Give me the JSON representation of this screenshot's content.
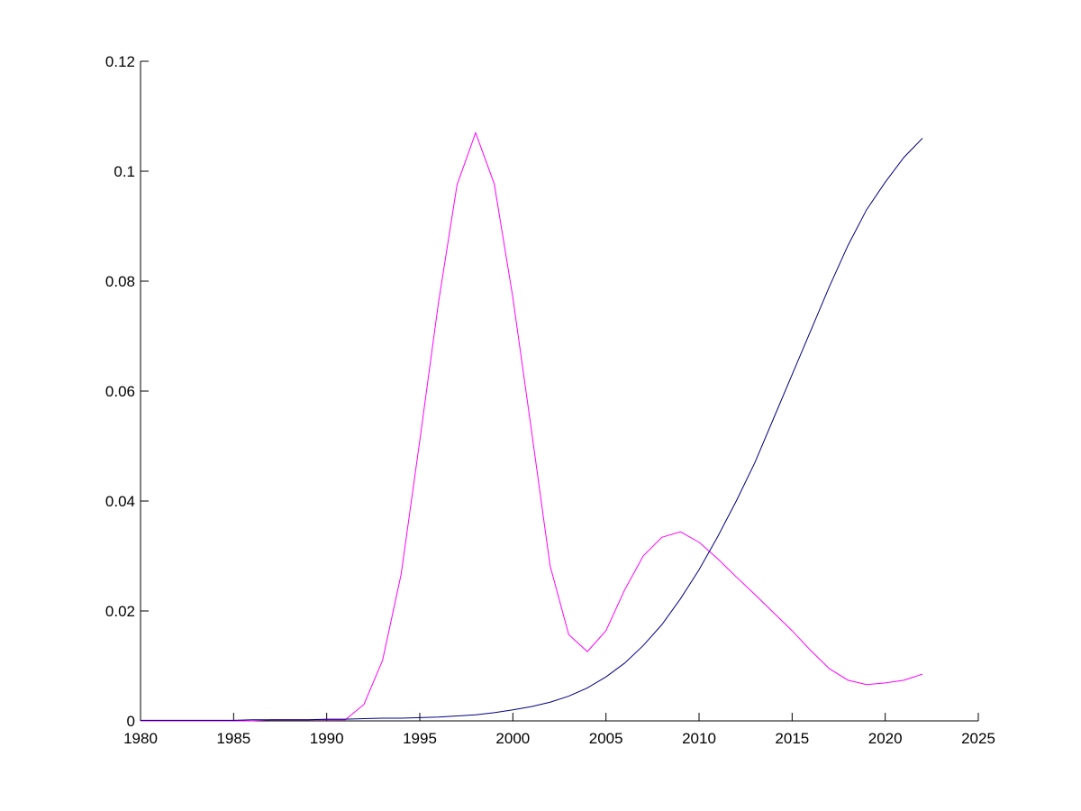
{
  "chart_data": {
    "type": "line",
    "x": [
      1980,
      1981,
      1982,
      1983,
      1984,
      1985,
      1986,
      1987,
      1988,
      1989,
      1990,
      1991,
      1992,
      1993,
      1994,
      1995,
      1996,
      1997,
      1998,
      1999,
      2000,
      2001,
      2002,
      2003,
      2004,
      2005,
      2006,
      2007,
      2008,
      2009,
      2010,
      2011,
      2012,
      2013,
      2014,
      2015,
      2016,
      2017,
      2018,
      2019,
      2020,
      2021,
      2022
    ],
    "series": [
      {
        "color": "#ff00ff",
        "values": [
          0,
          0,
          0,
          0,
          0,
          0,
          0,
          0.0002,
          0.0002,
          0.0002,
          0.0002,
          0.0002,
          0.003,
          0.011,
          0.0267,
          0.051,
          0.076,
          0.0975,
          0.107,
          0.0977,
          0.077,
          0.0528,
          0.0282,
          0.0157,
          0.0126,
          0.0164,
          0.0238,
          0.03,
          0.0334,
          0.0344,
          0.0325,
          0.0295,
          0.0262,
          0.023,
          0.0197,
          0.0164,
          0.0128,
          0.0095,
          0.0074,
          0.0066,
          0.0069,
          0.0074,
          0.0085
        ]
      },
      {
        "color": "#000080",
        "values": [
          0.0001,
          0.0001,
          0.0001,
          0.0001,
          0.0001,
          0.0001,
          0.0002,
          0.0002,
          0.0002,
          0.0002,
          0.0003,
          0.0003,
          0.0004,
          0.0005,
          0.0005,
          0.0006,
          0.0007,
          0.0009,
          0.0011,
          0.0015,
          0.002,
          0.0026,
          0.0034,
          0.0045,
          0.006,
          0.008,
          0.0105,
          0.0137,
          0.0175,
          0.0222,
          0.0275,
          0.0335,
          0.04,
          0.047,
          0.055,
          0.063,
          0.071,
          0.079,
          0.0865,
          0.093,
          0.098,
          0.1025,
          0.106
        ]
      }
    ],
    "xlim": [
      1980,
      2025
    ],
    "xticks": [
      1980,
      1985,
      1990,
      1995,
      2000,
      2005,
      2010,
      2015,
      2020,
      2025
    ],
    "ylim": [
      0,
      0.12
    ],
    "yticks": [
      0,
      0.02,
      0.04,
      0.06,
      0.08,
      0.1,
      0.12
    ]
  }
}
